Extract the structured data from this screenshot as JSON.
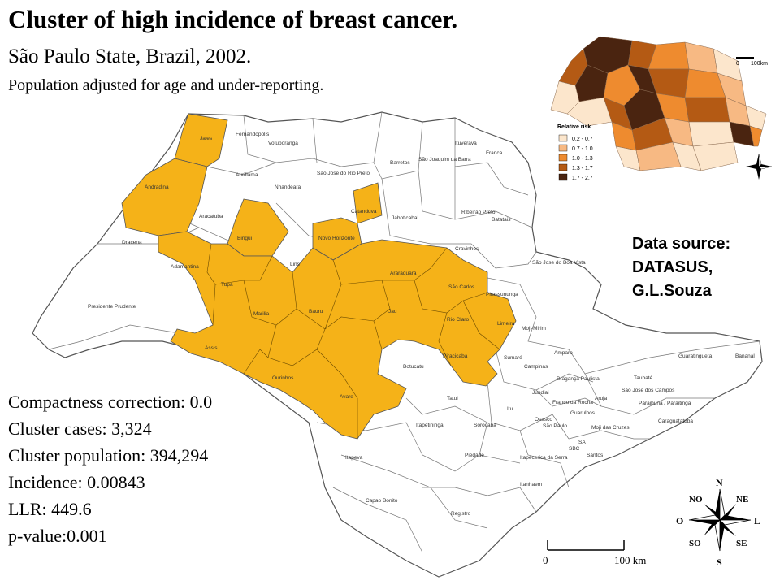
{
  "header": {
    "title": "Cluster of high incidence of breast cancer.",
    "subtitle": "São Paulo State, Brazil, 2002.",
    "subtitle2": "Population adjusted for age and under-reporting."
  },
  "stats": {
    "compactness": "Compactness correction: 0.0",
    "cases": "Cluster cases: 3,324",
    "population": "Cluster population: 394,294",
    "incidence": "Incidence: 0.00843",
    "llr": "LLR: 449.6",
    "pvalue": "p-value:0.001"
  },
  "source": {
    "line1": "Data source:",
    "line2": "DATASUS,",
    "line3": "G.L.Souza"
  },
  "colors": {
    "cluster": "#F5B218",
    "outline": "#555555",
    "risk": [
      "#FCE6CC",
      "#F7B983",
      "#EE8B2F",
      "#B45A14",
      "#4A2410"
    ]
  },
  "inset": {
    "legend_title": "Relative risk",
    "legend_items": [
      "0.2 - 0.7",
      "0.7 - 1.0",
      "1.0 - 1.3",
      "1.3 - 1.7",
      "1.7 - 2.7"
    ],
    "scale_zero": "0",
    "scale_end": "100km"
  },
  "scale": {
    "zero": "0",
    "end": "100 km"
  },
  "compass": {
    "n": "N",
    "s": "S",
    "e": "L",
    "w": "O",
    "ne": "NE",
    "no": "NO",
    "se": "SE",
    "so": "SO"
  },
  "regions": [
    "Jales",
    "Fernandopolis",
    "Votuporanga",
    "Andradina",
    "Auriflama",
    "Nhandeara",
    "São Jose do Rio Preto",
    "Barretos",
    "São Joaquim da Barra",
    "Ituverava",
    "Franca",
    "Aracatuba",
    "Birigui",
    "Catanduva",
    "Novo Horizonte",
    "Jaboticabal",
    "Ribeirao Preto",
    "Batatais",
    "Dracena",
    "Adamantina",
    "Lins",
    "Araraquara",
    "Cravinhos",
    "São Jose do Boa Vista",
    "Tupa",
    "Presidente Prudente",
    "Marilia",
    "Bauru",
    "Jau",
    "São Carlos",
    "Pirassununga",
    "Rio Claro",
    "Limeira",
    "Moji-Mirim",
    "Assis",
    "Ourinhos",
    "Botucatu",
    "Piracicaba",
    "Sumaré",
    "Amparo",
    "Guaratingueta",
    "Bananal",
    "Avare",
    "Campinas",
    "Bragança Paulista",
    "Jundiai",
    "Taubaté",
    "Tatui",
    "Itu",
    "Franco da Rocha",
    "Osasco",
    "Guarulhos",
    "Aruja",
    "São Jose dos Campos",
    "Paraibuna / Paraitinga",
    "Itapetininga",
    "Sorocaba",
    "São Paulo",
    "Moji das Cruzes",
    "Caraguatatuba",
    "Itapeva",
    "Piedade",
    "Itapecerica da Serra",
    "SBC",
    "SA",
    "Santos",
    "Itanhaem",
    "Capao Bonito",
    "Registro"
  ]
}
